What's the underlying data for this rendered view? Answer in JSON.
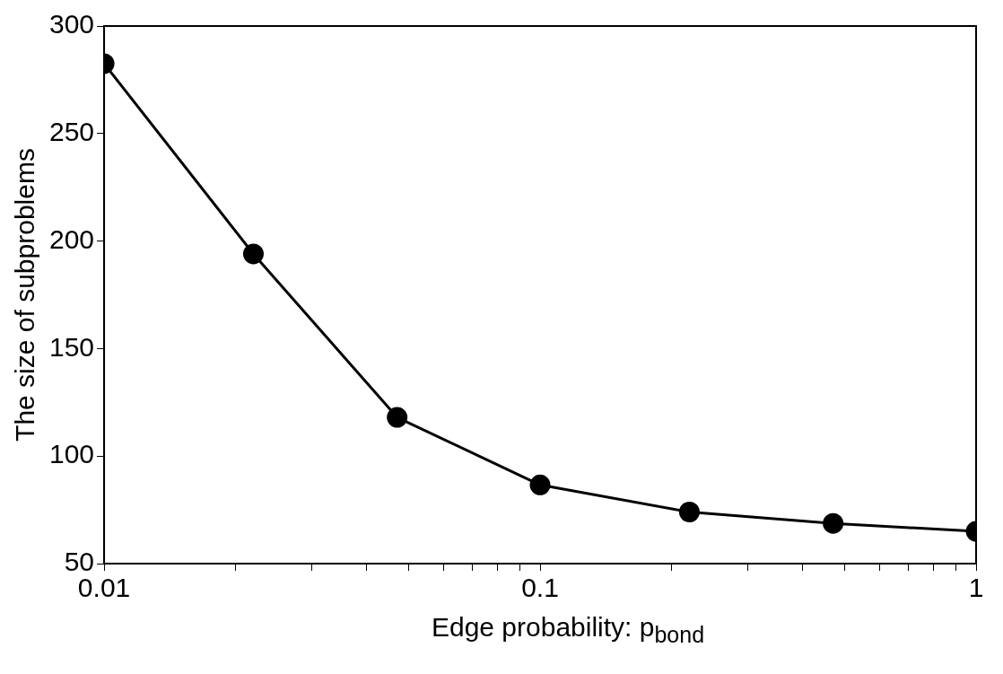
{
  "chart_data": {
    "type": "line",
    "xlabel": "Edge probability: p$_{bond}$",
    "ylabel": "The size of subproblems",
    "x": [
      0.01,
      0.022,
      0.047,
      0.1,
      0.22,
      0.47,
      1
    ],
    "series": [
      {
        "color": "#000000",
        "values": [
          282.5,
          194,
          118,
          86.6,
          74,
          68.7,
          65
        ]
      }
    ],
    "log": "x",
    "xlim": [
      0.01,
      1
    ],
    "xticks": [
      0.01,
      {
        "value": 0.02,
        "label": null
      },
      {
        "value": 0.03,
        "label": null
      },
      {
        "value": 0.04,
        "label": null
      },
      {
        "value": 0.05,
        "label": null
      },
      {
        "value": 0.06,
        "label": null
      },
      {
        "value": 0.07,
        "label": null
      },
      {
        "value": 0.08,
        "label": null
      },
      {
        "value": 0.09,
        "label": null
      },
      0.1,
      {
        "value": 0.2,
        "label": null
      },
      {
        "value": 0.3,
        "label": null
      },
      {
        "value": 0.4,
        "label": null
      },
      {
        "value": 0.5,
        "label": null
      },
      {
        "value": 0.6,
        "label": null
      },
      {
        "value": 0.7,
        "label": null
      },
      {
        "value": 0.8,
        "label": null
      },
      {
        "value": 0.9,
        "label": null
      },
      1
    ],
    "ylim": [
      50,
      300
    ],
    "yticks": [
      50,
      100,
      150,
      200,
      250,
      300
    ],
    "grid": false,
    "legend": false,
    "marker": "circle",
    "line_style": "solid"
  }
}
